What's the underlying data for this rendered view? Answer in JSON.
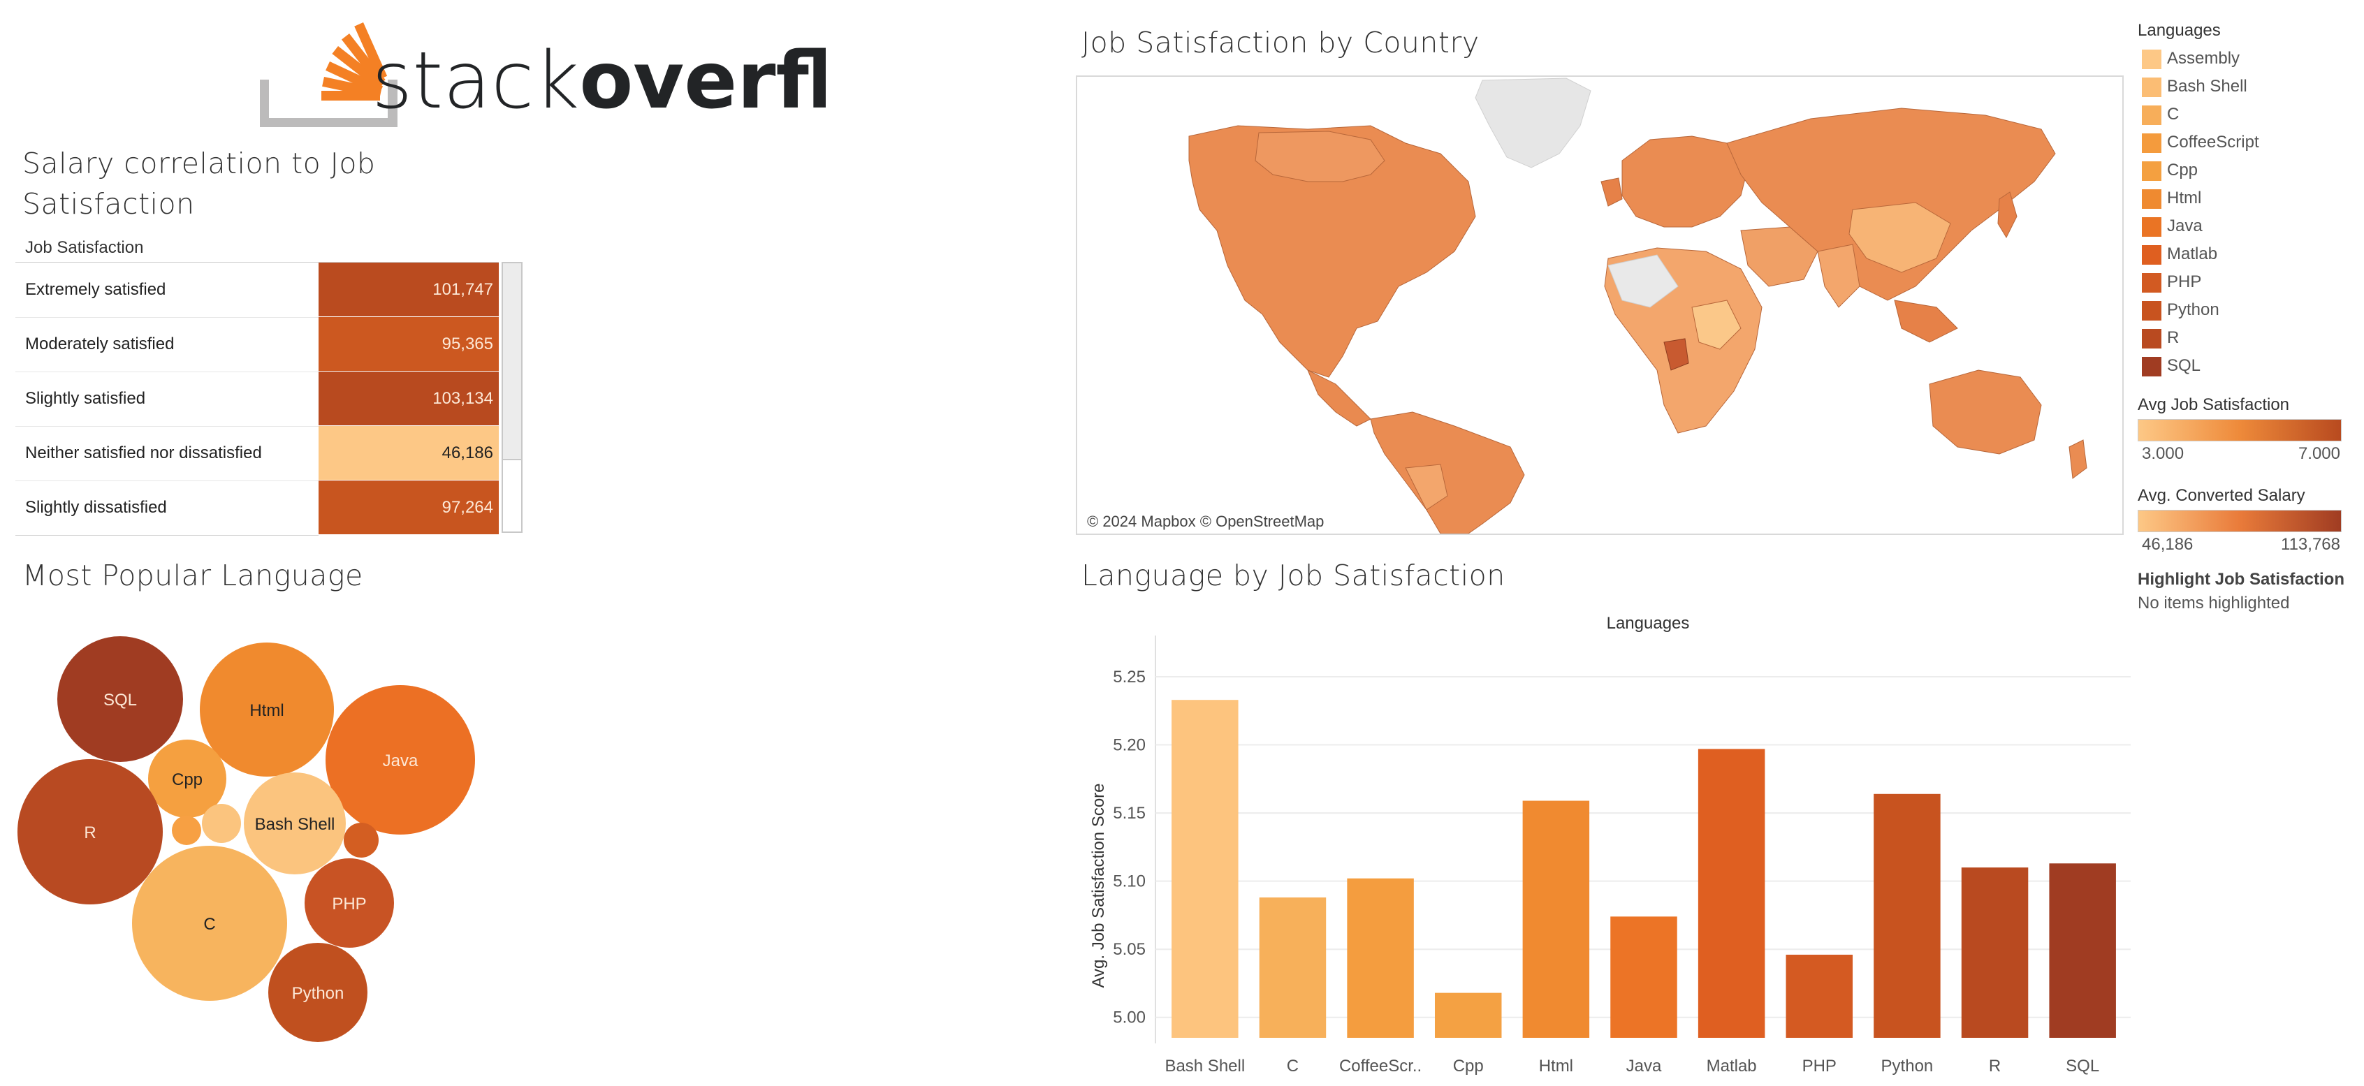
{
  "logo": {
    "word_light": "stack",
    "word_bold": "overflow"
  },
  "salary_panel": {
    "title": "Salary correlation to Job Satisfaction",
    "column_header": "Job Satisfaction",
    "rows": [
      {
        "label": "Extremely satisfied",
        "value": "101,747",
        "color": "#ba4b1f"
      },
      {
        "label": "Moderately satisfied",
        "value": "95,365",
        "color": "#cc5820"
      },
      {
        "label": "Slightly satisfied",
        "value": "103,134",
        "color": "#b84a1f"
      },
      {
        "label": "Neither satisfied nor dissatisfied",
        "value": "46,186",
        "color": "#fdc886"
      },
      {
        "label": "Slightly dissatisfied",
        "value": "97,264",
        "color": "#c8551f"
      }
    ]
  },
  "popular_panel": {
    "title": "Most Popular Language",
    "bubbles": [
      {
        "label": "SQL",
        "color": "#a03c22"
      },
      {
        "label": "Html",
        "color": "#f08a2e"
      },
      {
        "label": "Java",
        "color": "#ec7024"
      },
      {
        "label": "Cpp",
        "color": "#f5a040"
      },
      {
        "label": "R",
        "color": "#b84a22"
      },
      {
        "label": "Bash Shell",
        "color": "#fbc47e"
      },
      {
        "label": "C",
        "color": "#f7b45e"
      },
      {
        "label": "PHP",
        "color": "#c85324"
      },
      {
        "label": "Python",
        "color": "#c0501f"
      },
      {
        "label": "",
        "color": "#f7a043"
      },
      {
        "label": "",
        "color": "#fbc47e"
      },
      {
        "label": "",
        "color": "#d35e22"
      }
    ]
  },
  "map_panel": {
    "title": "Job Satisfaction by Country",
    "credit": "© 2024 Mapbox © OpenStreetMap"
  },
  "legend": {
    "languages_header": "Languages",
    "languages": [
      {
        "label": "Assembly",
        "color": "#fdc886"
      },
      {
        "label": "Bash Shell",
        "color": "#fbbd74"
      },
      {
        "label": "C",
        "color": "#f7ae5a"
      },
      {
        "label": "CoffeeScript",
        "color": "#f49b3d"
      },
      {
        "label": "Cpp",
        "color": "#f4a040"
      },
      {
        "label": "Html",
        "color": "#ef8a30"
      },
      {
        "label": "Java",
        "color": "#ea7424"
      },
      {
        "label": "Matlab",
        "color": "#df5f20"
      },
      {
        "label": "PHP",
        "color": "#d25a22"
      },
      {
        "label": "Python",
        "color": "#c8531f"
      },
      {
        "label": "R",
        "color": "#b94a20"
      },
      {
        "label": "SQL",
        "color": "#a03c22"
      }
    ],
    "avg_job_sat": {
      "title": "Avg Job Satisfaction",
      "min": "3.000",
      "max": "7.000",
      "from": "#fdc886",
      "to": "#b84a1f"
    },
    "avg_salary": {
      "title": "Avg. Converted Salary",
      "min": "46,186",
      "max": "113,768",
      "from": "#fdc886",
      "to": "#a03c22"
    },
    "highlight": {
      "title": "Highlight Job Satisfaction",
      "value": "No items highlighted"
    }
  },
  "chart_data": {
    "type": "bar",
    "title": "Language by Job Satisfaction",
    "xlabel": "Languages",
    "ylabel": "Avg. Job Satisfaction Score",
    "categories": [
      "Bash Shell",
      "C",
      "CoffeeScr..",
      "Cpp",
      "Html",
      "Java",
      "Matlab",
      "PHP",
      "Python",
      "R",
      "SQL"
    ],
    "values": [
      5.233,
      5.088,
      5.102,
      5.018,
      5.159,
      5.074,
      5.197,
      5.046,
      5.164,
      5.11,
      5.113
    ],
    "colors": [
      "#fdc47e",
      "#f7b05a",
      "#f49d3f",
      "#f4a143",
      "#f08a30",
      "#ec7426",
      "#df5f21",
      "#d45a22",
      "#c8531f",
      "#b94a20",
      "#a03c22"
    ],
    "yticks": [
      "5.00",
      "5.05",
      "5.10",
      "5.15",
      "5.20",
      "5.25"
    ],
    "ylim": [
      4.985,
      5.27
    ],
    "grid": true
  }
}
